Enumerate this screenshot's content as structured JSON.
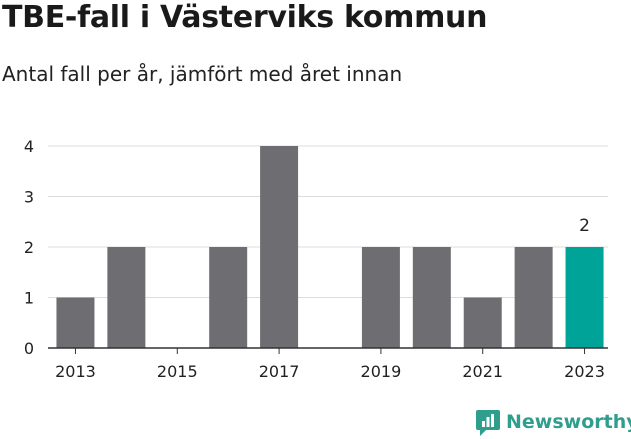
{
  "header": {
    "title": "TBE-fall i Västerviks kommun",
    "subtitle": "Antal fall per år, jämfört med året innan"
  },
  "brand": {
    "name": "Newsworthy",
    "color": "#2f9e8c",
    "icon": "bar-chart-logo-icon"
  },
  "colors": {
    "bar": "#6e6d72",
    "highlight": "#00a398",
    "grid": "#dcdcdc",
    "axis": "#333333"
  },
  "chart_data": {
    "type": "bar",
    "categories": [
      "2013",
      "2014",
      "2015",
      "2016",
      "2017",
      "2018",
      "2019",
      "2020",
      "2021",
      "2022",
      "2023"
    ],
    "values": [
      1,
      2,
      0,
      2,
      4,
      0,
      2,
      2,
      1,
      2,
      2
    ],
    "x_tick_labels": [
      "2013",
      "2015",
      "2017",
      "2019",
      "2021",
      "2023"
    ],
    "y_ticks": [
      0,
      1,
      2,
      3,
      4
    ],
    "ylim": [
      0,
      4
    ],
    "highlight_category": "2023",
    "highlight_label": "2",
    "grid": true,
    "legend": "none"
  }
}
